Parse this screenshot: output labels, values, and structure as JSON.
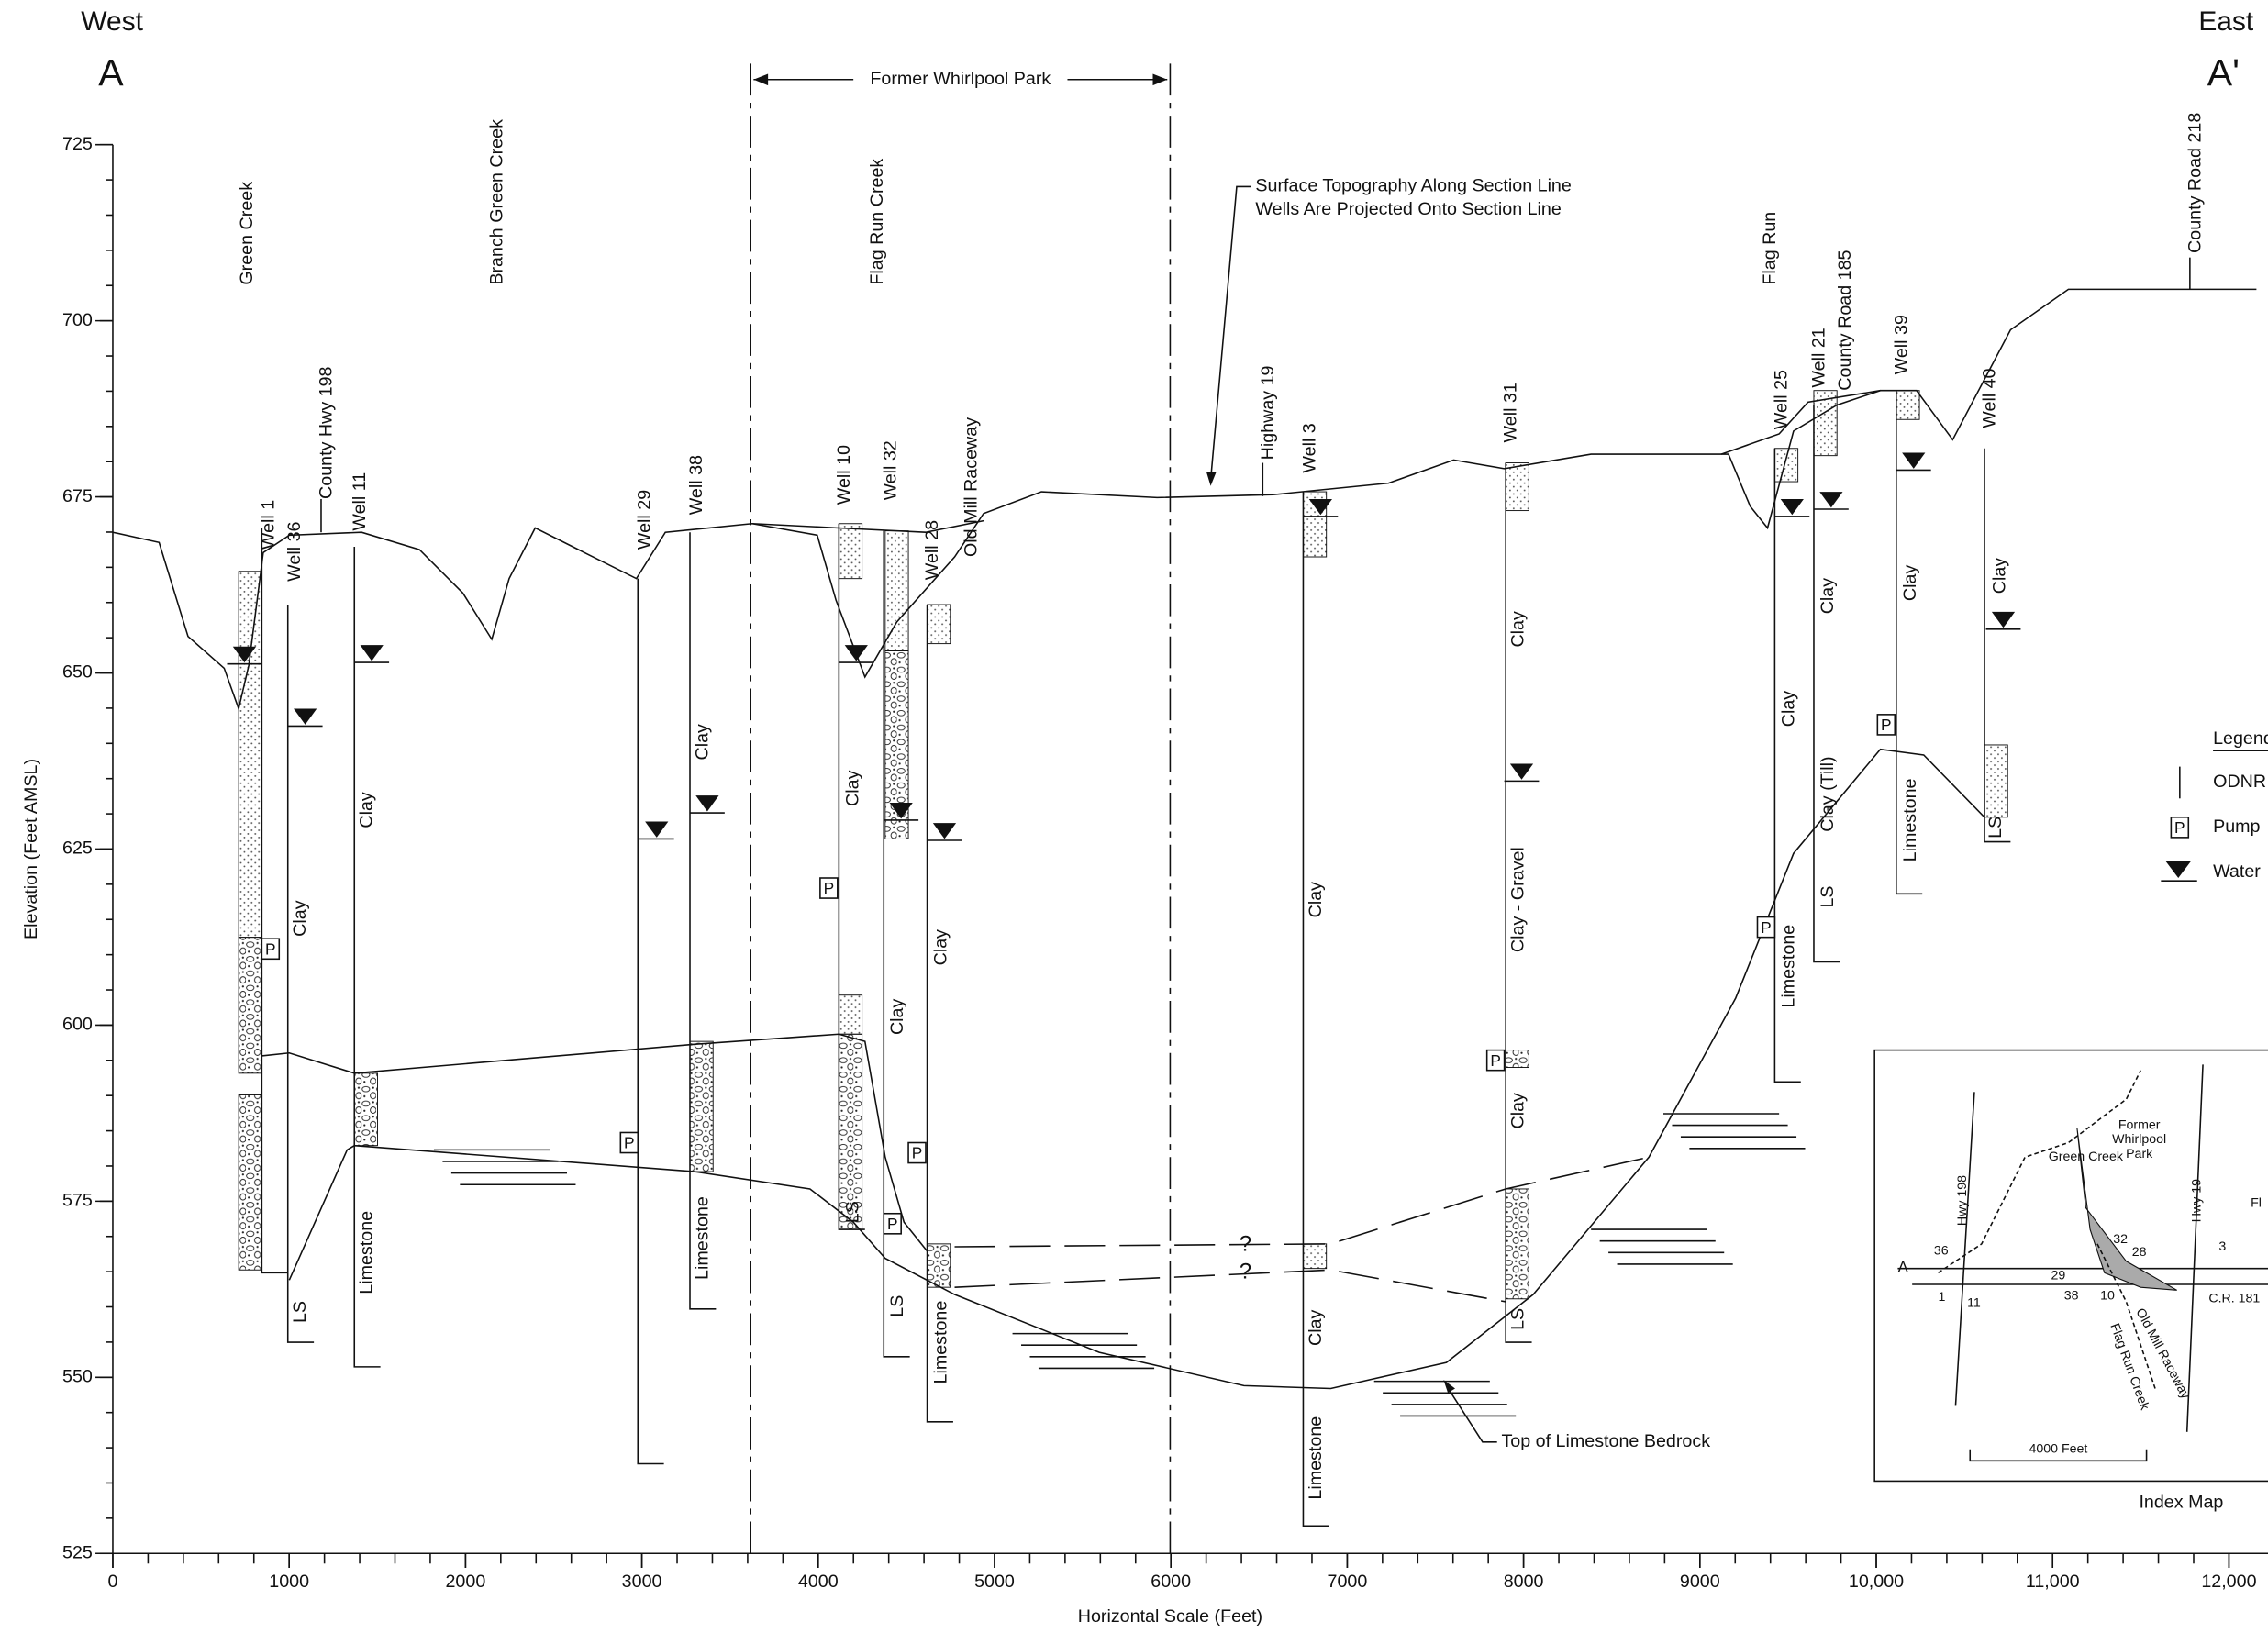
{
  "header": {
    "west": "West",
    "east": "East",
    "a": "A",
    "a_prime": "A'"
  },
  "park": "Former Whirlpool Park",
  "axes": {
    "ylabel": "Elevation (Feet AMSL)",
    "xlabel": "Horizontal Scale (Feet)",
    "ylim": [
      525,
      725
    ],
    "yticks": [
      525,
      550,
      575,
      600,
      625,
      650,
      675,
      700,
      725
    ],
    "xlim": [
      0,
      12000
    ],
    "xticks": [
      0,
      1000,
      2000,
      3000,
      4000,
      5000,
      6000,
      7000,
      8000,
      9000,
      {
        "value": 10000,
        "label": "10,000"
      },
      {
        "value": 11000,
        "label": "11,000"
      },
      {
        "value": 12000,
        "label": "12,000"
      }
    ]
  },
  "features": [
    "Green Creek",
    "Branch Green Creek",
    "Flag Run Creek",
    "Old Mill Raceway",
    "Highway 19",
    "Flag Run",
    "County Road 185",
    "County Road 218",
    "County Hwy 198"
  ],
  "annotations": [
    "Surface Topography Along Section Line",
    "Wells Are Projected Onto Section Line",
    "Top of Limestone Bedrock",
    "?",
    "?"
  ],
  "pump": "P",
  "wells": [
    {
      "name": "Well 1",
      "units": []
    },
    {
      "name": "Well 36",
      "units": [
        "Clay",
        "LS"
      ]
    },
    {
      "name": "Well 11",
      "units": [
        "Clay",
        "Limestone"
      ]
    },
    {
      "name": "Well 29",
      "units": []
    },
    {
      "name": "Well 38",
      "units": [
        "Clay",
        "Limestone"
      ]
    },
    {
      "name": "Well 10",
      "units": [
        "Clay",
        "LS"
      ]
    },
    {
      "name": "Well 32",
      "units": [
        "Clay",
        "LS"
      ]
    },
    {
      "name": "Well 28",
      "units": [
        "Clay",
        "Limestone"
      ]
    },
    {
      "name": "Well 3",
      "units": [
        "Clay",
        "Clay",
        "Limestone"
      ]
    },
    {
      "name": "Well 31",
      "units": [
        "Clay",
        "Clay - Gravel",
        "Clay",
        "LS"
      ]
    },
    {
      "name": "Well 25",
      "units": [
        "Clay",
        "Limestone"
      ]
    },
    {
      "name": "Well 21",
      "units": [
        "Clay",
        "Clay (Till)",
        "LS"
      ]
    },
    {
      "name": "Well 39",
      "units": [
        "Clay",
        "Limestone"
      ]
    },
    {
      "name": "Well 40",
      "units": [
        "Clay",
        "LS"
      ]
    }
  ],
  "legend": {
    "title": "Legend",
    "items": [
      "ODNR",
      "Pump",
      "Water"
    ]
  },
  "index_map": {
    "caption": "Index Map",
    "labels": [
      "Green Creek",
      "Former",
      "Whirlpool",
      "Park",
      "Hwy 198",
      "Hwy 19",
      "A",
      "36",
      "1",
      "11",
      "29",
      "38",
      "10",
      "32",
      "28",
      "3",
      "C.R. 181",
      "Old Mill Raceway",
      "Flag Run Creek",
      "4000 Feet",
      "Fl"
    ]
  }
}
